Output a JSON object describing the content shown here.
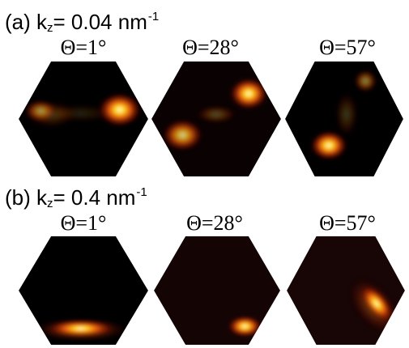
{
  "rows": [
    {
      "prefix": "(a) k",
      "sub": "z",
      "mid": "= 0.04 nm",
      "sup": "-1",
      "panels": [
        {
          "label": "Θ=1°",
          "bg": "#000000",
          "spots": [
            {
              "fx": 0.17,
              "fy": 0.43,
              "rx": 0.13,
              "ry": 0.1,
              "i": 0.55
            },
            {
              "fx": 0.25,
              "fy": 0.46,
              "rx": 0.2,
              "ry": 0.12,
              "i": 0.22
            },
            {
              "fx": 0.78,
              "fy": 0.42,
              "rx": 0.17,
              "ry": 0.15,
              "i": 1.0
            },
            {
              "fx": 0.47,
              "fy": 0.45,
              "rx": 0.3,
              "ry": 0.08,
              "i": 0.12
            }
          ]
        },
        {
          "label": "Θ=28°",
          "bg": "#0a0202",
          "spots": [
            {
              "fx": 0.75,
              "fy": 0.28,
              "rx": 0.15,
              "ry": 0.14,
              "i": 1.0
            },
            {
              "fx": 0.24,
              "fy": 0.64,
              "rx": 0.16,
              "ry": 0.14,
              "i": 0.8
            },
            {
              "fx": 0.5,
              "fy": 0.46,
              "rx": 0.16,
              "ry": 0.08,
              "i": 0.28
            }
          ]
        },
        {
          "label": "Θ=57°",
          "bg": "#000000",
          "spots": [
            {
              "fx": 0.68,
              "fy": 0.17,
              "rx": 0.1,
              "ry": 0.1,
              "i": 0.5
            },
            {
              "fx": 0.37,
              "fy": 0.73,
              "rx": 0.16,
              "ry": 0.13,
              "i": 1.0
            },
            {
              "fx": 0.52,
              "fy": 0.46,
              "rx": 0.1,
              "ry": 0.2,
              "i": 0.2
            }
          ]
        }
      ]
    },
    {
      "prefix": "(b) k",
      "sub": "z",
      "mid": "= 0.4 nm",
      "sup": "-1",
      "panels": [
        {
          "label": "Θ=1°",
          "bg": "#000000",
          "spots": [
            {
              "fx": 0.48,
              "fy": 0.85,
              "rx": 0.26,
              "ry": 0.08,
              "i": 1.0
            },
            {
              "fx": 0.48,
              "fy": 0.86,
              "rx": 0.38,
              "ry": 0.11,
              "i": 0.35
            }
          ]
        },
        {
          "label": "Θ=28°",
          "bg": "#140404",
          "spots": [
            {
              "fx": 0.72,
              "fy": 0.83,
              "rx": 0.14,
              "ry": 0.1,
              "i": 1.0
            }
          ]
        },
        {
          "label": "Θ=57°",
          "bg": "#180505",
          "spots": [
            {
              "fx": 0.76,
              "fy": 0.62,
              "rx": 0.09,
              "ry": 0.2,
              "i": 1.0,
              "rot": -40
            },
            {
              "fx": 0.74,
              "fy": 0.64,
              "rx": 0.16,
              "ry": 0.3,
              "i": 0.3,
              "rot": -40
            }
          ]
        }
      ]
    }
  ]
}
